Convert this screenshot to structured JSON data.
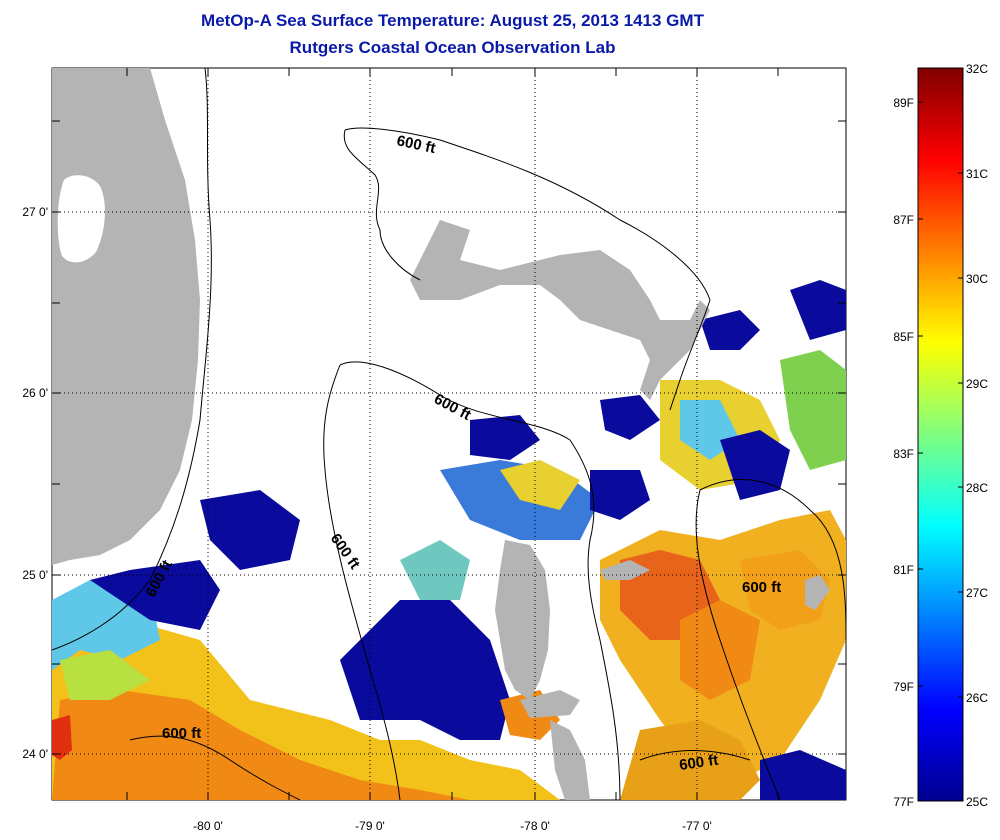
{
  "header": {
    "title": "MetOp-A Sea Surface Temperature:  August 25, 2013 1413 GMT",
    "subtitle": "Rutgers Coastal Ocean Observation Lab"
  },
  "map": {
    "lat_labels": [
      "27 0'",
      "26 0'",
      "25 0'",
      "24 0'"
    ],
    "lon_labels": [
      "-80 0'",
      "-79 0'",
      "-78 0'",
      "-77 0'"
    ],
    "contour_label": "600 ft",
    "land_color": "#b4b4b4",
    "grid": true
  },
  "colorbar": {
    "celsius": [
      "32C",
      "31C",
      "30C",
      "29C",
      "28C",
      "27C",
      "26C",
      "25C"
    ],
    "fahrenheit": [
      "89F",
      "87F",
      "85F",
      "83F",
      "81F",
      "79F",
      "77F"
    ],
    "range_c": [
      25,
      32
    ]
  }
}
